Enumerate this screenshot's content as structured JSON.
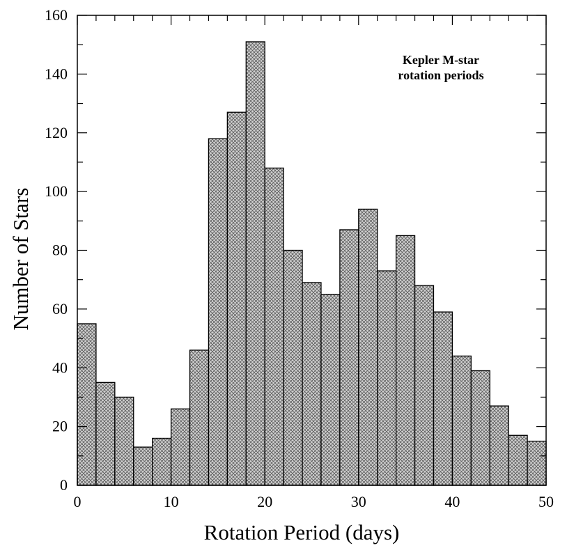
{
  "chart_data": {
    "type": "bar",
    "annotation": [
      "Kepler M-star",
      "rotation periods"
    ],
    "xlabel": "Rotation Period (days)",
    "ylabel": "Number of Stars",
    "xlim": [
      0,
      50
    ],
    "ylim": [
      0,
      160
    ],
    "x_ticks": [
      0,
      10,
      20,
      30,
      40,
      50
    ],
    "y_ticks": [
      0,
      20,
      40,
      60,
      80,
      100,
      120,
      140,
      160
    ],
    "bin_width": 2,
    "bin_starts": [
      0,
      2,
      4,
      6,
      8,
      10,
      12,
      14,
      16,
      18,
      20,
      22,
      24,
      26,
      28,
      30,
      32,
      34,
      36,
      38,
      40,
      42,
      44,
      46,
      48
    ],
    "values": [
      55,
      35,
      30,
      13,
      16,
      26,
      46,
      118,
      127,
      151,
      108,
      80,
      69,
      65,
      87,
      94,
      73,
      85,
      68,
      59,
      44,
      39,
      27,
      17,
      15
    ],
    "grid": false,
    "fill_pattern": "crosshatch",
    "colors": {
      "bar_fill": "#c8c8c8",
      "hatch": "#555555",
      "stroke": "#000000"
    }
  }
}
